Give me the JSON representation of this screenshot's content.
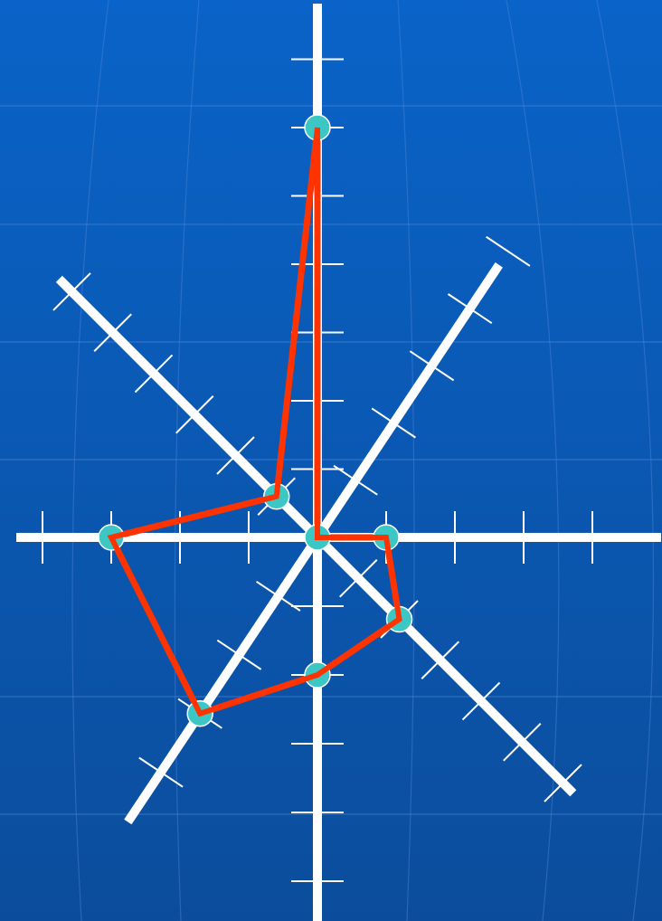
{
  "chart_data": {
    "type": "radar",
    "title": "",
    "axes": [
      {
        "direction": "up",
        "ticks": 7
      },
      {
        "direction": "up-right",
        "ticks": 5
      },
      {
        "direction": "right",
        "ticks": 4
      },
      {
        "direction": "down-right",
        "ticks": 6
      },
      {
        "direction": "down",
        "ticks": 5
      },
      {
        "direction": "down-left",
        "ticks": 4
      },
      {
        "direction": "left",
        "ticks": 4
      },
      {
        "direction": "up-left",
        "ticks": 6
      }
    ],
    "series": [
      {
        "values": [
          6,
          0,
          1,
          2,
          2,
          3,
          3,
          1
        ]
      }
    ],
    "grid": false,
    "legend": "none"
  },
  "colors": {
    "background_top": "#0a63c8",
    "background_bottom": "#0b4d9c",
    "axis": "#ffffff",
    "polygon": "#ff3300",
    "marker_fill": "#3cc7c4",
    "decor_lines": "#4d86d6"
  }
}
